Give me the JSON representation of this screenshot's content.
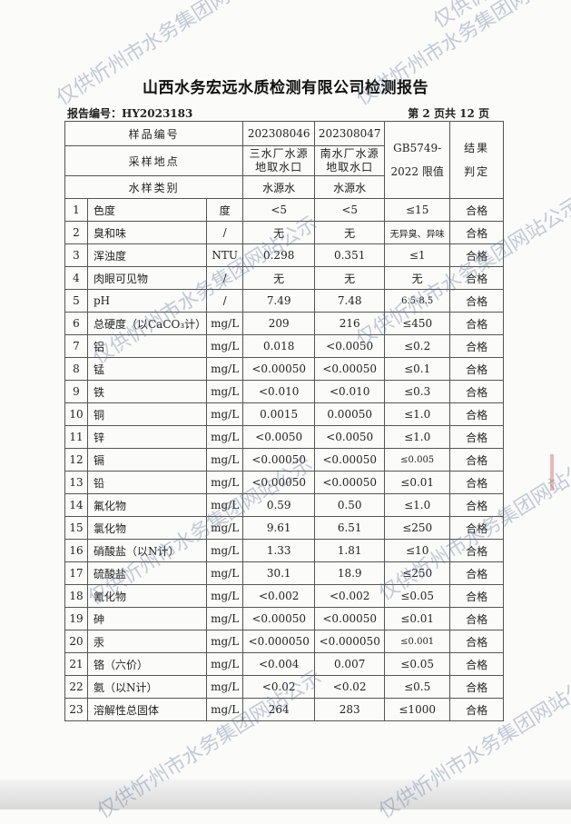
{
  "title": "山西水务宏远水质检测有限公司检测报告",
  "report_no": "报告编号：HY2023183",
  "page_info": "第 2 页共 12 页",
  "watermark": "仅供忻州市水务集团网站公示",
  "header": {
    "sample_no_label": "样品编号",
    "site_label": "采样地点",
    "type_label": "水样类别",
    "samples": [
      {
        "no": "202308046",
        "site1": "三水厂水源",
        "site2": "地取水口",
        "type": "水源水"
      },
      {
        "no": "202308047",
        "site1": "南水厂水源",
        "site2": "地取水口",
        "type": "水源水"
      }
    ],
    "limit_label1": "GB5749-",
    "limit_label2": "2022 限值",
    "result_label1": "结果",
    "result_label2": "判定"
  },
  "rows": [
    {
      "n": "1",
      "item": "色度",
      "unit": "度",
      "s1": "<5",
      "s2": "<5",
      "limit": "≤15",
      "result": "合格"
    },
    {
      "n": "2",
      "item": "臭和味",
      "unit": "/",
      "s1": "无",
      "s2": "无",
      "limit": "无异臭、异味",
      "result": "合格"
    },
    {
      "n": "3",
      "item": "浑浊度",
      "unit": "NTU",
      "s1": "0.298",
      "s2": "0.351",
      "limit": "≤1",
      "result": "合格"
    },
    {
      "n": "4",
      "item": "肉眼可见物",
      "unit": "/",
      "s1": "无",
      "s2": "无",
      "limit": "无",
      "result": "合格"
    },
    {
      "n": "5",
      "item": "pH",
      "unit": "/",
      "s1": "7.49",
      "s2": "7.48",
      "limit": "6.5-8.5",
      "result": "合格"
    },
    {
      "n": "6",
      "item": "总硬度（以CaCO₃计）",
      "unit": "mg/L",
      "s1": "209",
      "s2": "216",
      "limit": "≤450",
      "result": "合格"
    },
    {
      "n": "7",
      "item": "铝",
      "unit": "mg/L",
      "s1": "0.018",
      "s2": "<0.0050",
      "limit": "≤0.2",
      "result": "合格"
    },
    {
      "n": "8",
      "item": "锰",
      "unit": "mg/L",
      "s1": "<0.00050",
      "s2": "<0.00050",
      "limit": "≤0.1",
      "result": "合格"
    },
    {
      "n": "9",
      "item": "铁",
      "unit": "mg/L",
      "s1": "<0.010",
      "s2": "<0.010",
      "limit": "≤0.3",
      "result": "合格"
    },
    {
      "n": "10",
      "item": "铜",
      "unit": "mg/L",
      "s1": "0.0015",
      "s2": "0.00050",
      "limit": "≤1.0",
      "result": "合格"
    },
    {
      "n": "11",
      "item": "锌",
      "unit": "mg/L",
      "s1": "<0.0050",
      "s2": "<0.0050",
      "limit": "≤1.0",
      "result": "合格"
    },
    {
      "n": "12",
      "item": "镉",
      "unit": "mg/L",
      "s1": "<0.00050",
      "s2": "<0.00050",
      "limit": "≤0.005",
      "result": "合格"
    },
    {
      "n": "13",
      "item": "铅",
      "unit": "mg/L",
      "s1": "<0.00050",
      "s2": "<0.00050",
      "limit": "≤0.01",
      "result": "合格"
    },
    {
      "n": "14",
      "item": "氟化物",
      "unit": "mg/L",
      "s1": "0.59",
      "s2": "0.50",
      "limit": "≤1.0",
      "result": "合格"
    },
    {
      "n": "15",
      "item": "氯化物",
      "unit": "mg/L",
      "s1": "9.61",
      "s2": "6.51",
      "limit": "≤250",
      "result": "合格"
    },
    {
      "n": "16",
      "item": "硝酸盐（以N计）",
      "unit": "mg/L",
      "s1": "1.33",
      "s2": "1.81",
      "limit": "≤10",
      "result": "合格"
    },
    {
      "n": "17",
      "item": "硫酸盐",
      "unit": "mg/L",
      "s1": "30.1",
      "s2": "18.9",
      "limit": "≤250",
      "result": "合格"
    },
    {
      "n": "18",
      "item": "氰化物",
      "unit": "mg/L",
      "s1": "<0.002",
      "s2": "<0.002",
      "limit": "≤0.05",
      "result": "合格"
    },
    {
      "n": "19",
      "item": "砷",
      "unit": "mg/L",
      "s1": "<0.00050",
      "s2": "<0.00050",
      "limit": "≤0.01",
      "result": "合格"
    },
    {
      "n": "20",
      "item": "汞",
      "unit": "mg/L",
      "s1": "<0.000050",
      "s2": "<0.000050",
      "limit": "≤0.001",
      "result": "合格"
    },
    {
      "n": "21",
      "item": "铬（六价）",
      "unit": "mg/L",
      "s1": "<0.004",
      "s2": "0.007",
      "limit": "≤0.05",
      "result": "合格"
    },
    {
      "n": "22",
      "item": "氨（以N计）",
      "unit": "mg/L",
      "s1": "<0.02",
      "s2": "<0.02",
      "limit": "≤0.5",
      "result": "合格"
    },
    {
      "n": "23",
      "item": "溶解性总固体",
      "unit": "mg/L",
      "s1": "264",
      "s2": "283",
      "limit": "≤1000",
      "result": "合格"
    }
  ]
}
